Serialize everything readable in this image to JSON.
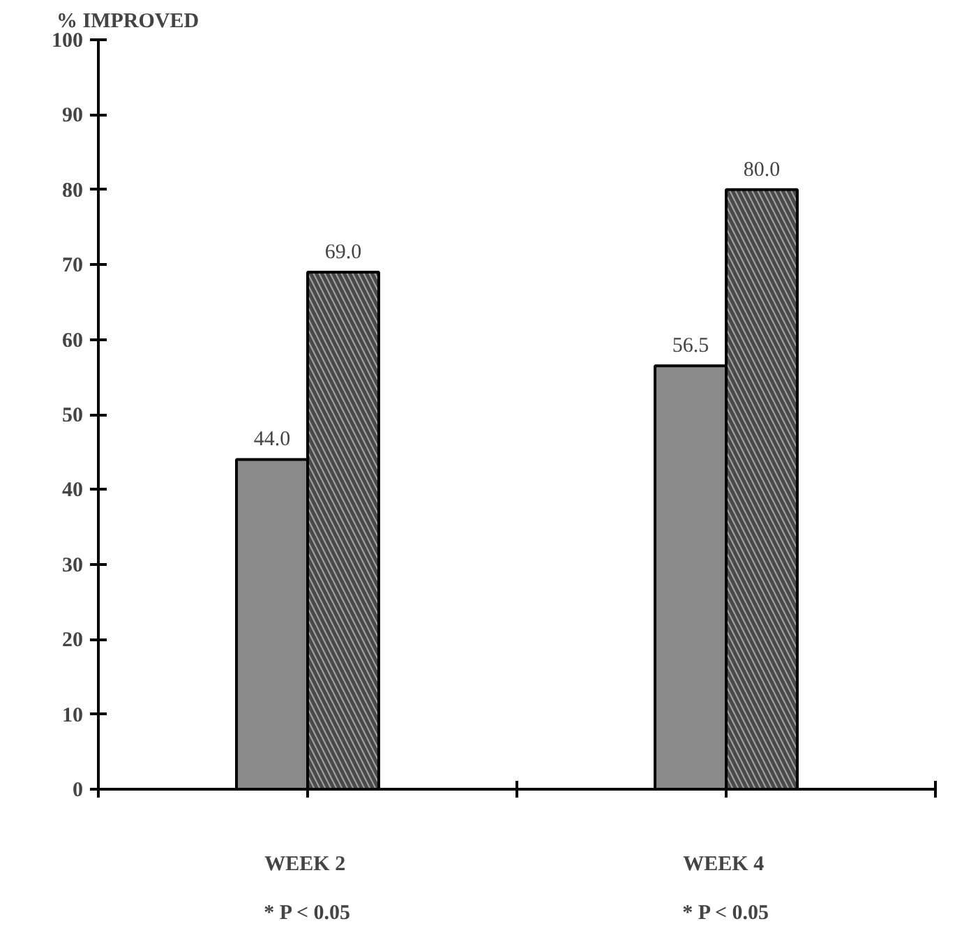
{
  "chart_data": {
    "type": "bar",
    "ylabel": "% IMPROVED",
    "categories": [
      "WEEK  2",
      "WEEK  4"
    ],
    "series": [
      {
        "color": "#8a8a8a",
        "values": [
          44.0,
          56.5
        ],
        "value_labels": [
          "44.0",
          "56.5"
        ]
      },
      {
        "color": "#4a4a4a",
        "values": [
          69.0,
          80.0
        ],
        "value_labels": [
          "69.0",
          "80.0"
        ]
      }
    ],
    "ylim": [
      0,
      100
    ],
    "yticks": [
      0,
      10,
      20,
      30,
      40,
      50,
      60,
      70,
      80,
      90,
      100
    ],
    "grid": false,
    "annotations": [
      "* P < 0.05",
      "* P < 0.05"
    ]
  }
}
